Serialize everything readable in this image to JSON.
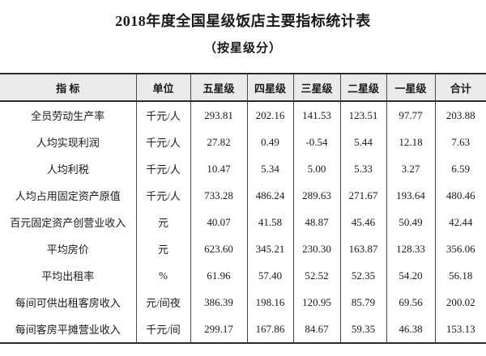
{
  "title": "2018年度全国星级饭店主要指标统计表",
  "subtitle": "（按星级分）",
  "table": {
    "headers": [
      "指 标",
      "单位",
      "五星级",
      "四星级",
      "三星级",
      "二星级",
      "一星级",
      "合计"
    ],
    "rows": [
      {
        "indicator": "全员劳动生产率",
        "unit": "千元/人",
        "values": [
          "293.81",
          "202.16",
          "141.53",
          "123.51",
          "97.77",
          "203.88"
        ]
      },
      {
        "indicator": "人均实现利润",
        "unit": "千元/人",
        "values": [
          "27.82",
          "0.49",
          "-0.54",
          "5.44",
          "12.18",
          "7.63"
        ]
      },
      {
        "indicator": "人均利税",
        "unit": "千元/人",
        "values": [
          "10.47",
          "5.34",
          "5.00",
          "5.33",
          "3.27",
          "6.59"
        ]
      },
      {
        "indicator": "人均占用固定资产原值",
        "unit": "千元/人",
        "values": [
          "733.28",
          "486.24",
          "289.63",
          "271.67",
          "193.64",
          "480.46"
        ]
      },
      {
        "indicator": "百元固定资产创营业收入",
        "unit": "元",
        "values": [
          "40.07",
          "41.58",
          "48.87",
          "45.46",
          "50.49",
          "42.44"
        ]
      },
      {
        "indicator": "平均房价",
        "unit": "元",
        "values": [
          "623.60",
          "345.21",
          "230.30",
          "163.87",
          "128.33",
          "356.06"
        ]
      },
      {
        "indicator": "平均出租率",
        "unit": "%",
        "values": [
          "61.96",
          "57.40",
          "52.52",
          "52.35",
          "54.20",
          "56.18"
        ]
      },
      {
        "indicator": "每间可供出租客房收入",
        "unit": "元/间夜",
        "values": [
          "386.39",
          "198.16",
          "120.95",
          "85.79",
          "69.56",
          "200.02"
        ]
      },
      {
        "indicator": "每间客房平摊营业收入",
        "unit": "千元/间",
        "values": [
          "299.17",
          "167.86",
          "84.67",
          "59.35",
          "46.38",
          "153.13"
        ]
      }
    ]
  },
  "colors": {
    "header_background": "#ebebeb",
    "rule": "#2b2b2b",
    "grid_line": "#4a4a4a",
    "text": "#1a1a1a",
    "page_background": "#ffffff"
  }
}
